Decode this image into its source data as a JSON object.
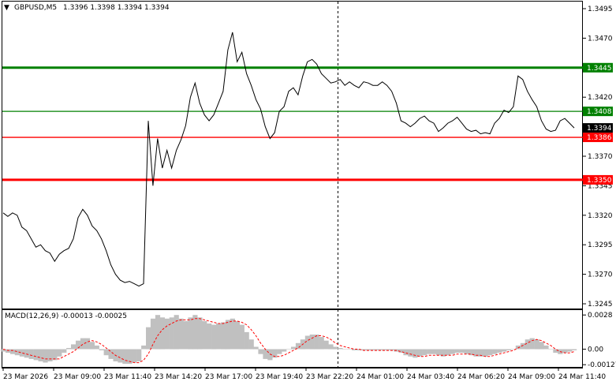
{
  "chart_data": {
    "type": "line",
    "header": {
      "symbol_timeframe": "GBPUSD,M5",
      "ohlc": "1.3396 1.3398 1.3394 1.3394"
    },
    "price_axis": {
      "ticks": [
        "1.3495",
        "1.3470",
        "1.3420",
        "1.3370",
        "1.3345",
        "1.3320",
        "1.3295",
        "1.3270",
        "1.3245"
      ],
      "ylim": [
        1.3241,
        1.3501
      ]
    },
    "time_axis": {
      "labels": [
        "23 Mar 2026",
        "23 Mar 09:00",
        "23 Mar 11:40",
        "23 Mar 14:20",
        "23 Mar 17:00",
        "23 Mar 19:40",
        "23 Mar 22:20",
        "24 Mar 01:00",
        "24 Mar 03:40",
        "24 Mar 06:20",
        "24 Mar 09:00",
        "24 Mar 11:40"
      ]
    },
    "levels": [
      {
        "label": "1.3445",
        "price": 1.3445,
        "color": "#008000",
        "weight": "thick"
      },
      {
        "label": "1.3408",
        "price": 1.3408,
        "color": "#008000",
        "weight": "thin"
      },
      {
        "label": "1.3386",
        "price": 1.3386,
        "color": "#ff0000",
        "weight": "thin"
      },
      {
        "label": "1.3350",
        "price": 1.335,
        "color": "#ff0000",
        "weight": "thick"
      }
    ],
    "current_price": {
      "label": "1.3394",
      "price": 1.3394
    },
    "price_series": {
      "color": "#000000",
      "values": [
        1.3322,
        1.3319,
        1.3322,
        1.332,
        1.331,
        1.3307,
        1.33,
        1.3293,
        1.3295,
        1.329,
        1.3288,
        1.3281,
        1.3287,
        1.329,
        1.3292,
        1.33,
        1.3318,
        1.3325,
        1.332,
        1.3311,
        1.3307,
        1.33,
        1.329,
        1.3278,
        1.327,
        1.3265,
        1.3263,
        1.3264,
        1.3262,
        1.326,
        1.3262,
        1.34,
        1.3345,
        1.3385,
        1.336,
        1.3375,
        1.336,
        1.3375,
        1.3384,
        1.3396,
        1.342,
        1.3432,
        1.3415,
        1.3405,
        1.34,
        1.3405,
        1.3415,
        1.3425,
        1.346,
        1.3475,
        1.345,
        1.3458,
        1.344,
        1.343,
        1.3418,
        1.341,
        1.3395,
        1.3385,
        1.339,
        1.3408,
        1.3412,
        1.3425,
        1.3428,
        1.3422,
        1.3438,
        1.345,
        1.3452,
        1.3448,
        1.344,
        1.3436,
        1.3432,
        1.3433,
        1.3435,
        1.343,
        1.3433,
        1.343,
        1.3428,
        1.3433,
        1.3432,
        1.343,
        1.343,
        1.3433,
        1.343,
        1.3425,
        1.3415,
        1.34,
        1.3398,
        1.3395,
        1.3398,
        1.3402,
        1.3404,
        1.34,
        1.3398,
        1.3391,
        1.3394,
        1.3398,
        1.34,
        1.3403,
        1.3398,
        1.3393,
        1.3391,
        1.3392,
        1.3389,
        1.339,
        1.3389,
        1.3398,
        1.3402,
        1.3409,
        1.3407,
        1.3412,
        1.3438,
        1.3435,
        1.3425,
        1.3418,
        1.3412,
        1.34,
        1.3393,
        1.3391,
        1.3392,
        1.34,
        1.3402,
        1.3398,
        1.3394
      ]
    },
    "macd": {
      "label": "MACD(12,26,9) -0.00013 -0.00025",
      "ticks": [
        "0.0028",
        "0.00",
        "-0.00127"
      ],
      "ylim": [
        -0.00145,
        0.0032
      ],
      "histogram_color": "#c0c0c0",
      "signal_color": "#ff0000",
      "histogram": [
        -0.0002,
        -0.0003,
        -0.0004,
        -0.0005,
        -0.0006,
        -0.0007,
        -0.0008,
        -0.0009,
        -0.001,
        -0.0011,
        -0.001,
        -0.0009,
        -0.0006,
        -0.0003,
        0.0001,
        0.0004,
        0.0007,
        0.0009,
        0.0009,
        0.0006,
        0.0003,
        -0.0001,
        -0.0005,
        -0.0008,
        -0.001,
        -0.0011,
        -0.0012,
        -0.0012,
        -0.0011,
        -0.001,
        0.0003,
        0.0018,
        0.0025,
        0.0028,
        0.0026,
        0.0025,
        0.0026,
        0.0028,
        0.0025,
        0.0023,
        0.0026,
        0.0028,
        0.0026,
        0.0023,
        0.0021,
        0.002,
        0.0021,
        0.0022,
        0.0024,
        0.0025,
        0.0023,
        0.002,
        0.0014,
        0.0008,
        0.0002,
        -0.0004,
        -0.0008,
        -0.0009,
        -0.0007,
        -0.0004,
        -0.0002,
        0.0,
        0.0002,
        0.0005,
        0.0008,
        0.0011,
        0.0012,
        0.0012,
        0.001,
        0.0007,
        0.0004,
        0.0002,
        0.0001,
        0.0,
        0.0,
        -0.0001,
        -0.0001,
        -0.0001,
        -0.0001,
        -0.0001,
        -0.0001,
        -0.0001,
        -0.0001,
        -0.0001,
        -0.0002,
        -0.0003,
        -0.0005,
        -0.0006,
        -0.0007,
        -0.0006,
        -0.0005,
        -0.0004,
        -0.0004,
        -0.0005,
        -0.0006,
        -0.0005,
        -0.0004,
        -0.0003,
        -0.0003,
        -0.0004,
        -0.0005,
        -0.0006,
        -0.0006,
        -0.0006,
        -0.0005,
        -0.0004,
        -0.0003,
        -0.0002,
        -0.0001,
        0.0,
        0.0003,
        0.0005,
        0.0008,
        0.0009,
        0.0008,
        0.0006,
        0.0003,
        0.0,
        -0.0003,
        -0.0004,
        -0.0003,
        -0.0002,
        -0.0001
      ],
      "signal": [
        0.0,
        -0.0001,
        -0.0001,
        -0.0002,
        -0.0003,
        -0.0004,
        -0.0005,
        -0.0006,
        -0.0007,
        -0.0008,
        -0.0008,
        -0.0008,
        -0.0008,
        -0.0006,
        -0.0004,
        -0.0002,
        0.0001,
        0.0004,
        0.0006,
        0.0007,
        0.0006,
        0.0004,
        0.0001,
        -0.0002,
        -0.0005,
        -0.0007,
        -0.0009,
        -0.001,
        -0.0011,
        -0.0011,
        -0.0009,
        -0.0004,
        0.0004,
        0.0011,
        0.0016,
        0.0019,
        0.0021,
        0.0023,
        0.0024,
        0.0024,
        0.0024,
        0.0025,
        0.0025,
        0.0024,
        0.0023,
        0.0022,
        0.0021,
        0.0021,
        0.0022,
        0.0023,
        0.0023,
        0.0022,
        0.002,
        0.0016,
        0.0011,
        0.0005,
        0.0,
        -0.0004,
        -0.0006,
        -0.0006,
        -0.0005,
        -0.0003,
        -0.0001,
        0.0001,
        0.0004,
        0.0007,
        0.0009,
        0.0011,
        0.0011,
        0.001,
        0.0008,
        0.0005,
        0.0003,
        0.0002,
        0.0001,
        0.0,
        0.0,
        -0.0001,
        -0.0001,
        -0.0001,
        -0.0001,
        -0.0001,
        -0.0001,
        -0.0001,
        -0.0001,
        -0.0002,
        -0.0003,
        -0.0004,
        -0.0005,
        -0.0006,
        -0.0006,
        -0.0005,
        -0.0005,
        -0.0005,
        -0.0005,
        -0.0005,
        -0.0005,
        -0.0004,
        -0.0004,
        -0.0004,
        -0.0004,
        -0.0005,
        -0.0005,
        -0.0006,
        -0.0006,
        -0.0005,
        -0.0004,
        -0.0003,
        -0.0002,
        -0.0001,
        0.0001,
        0.0003,
        0.0005,
        0.0007,
        0.0008,
        0.0007,
        0.0005,
        0.0003,
        0.0,
        -0.0002,
        -0.0003,
        -0.0003,
        -0.0002
      ]
    },
    "grid": false,
    "legend": "none",
    "colors": {
      "background": "#ffffff",
      "axis": "#000000",
      "separator": "#000000"
    }
  }
}
